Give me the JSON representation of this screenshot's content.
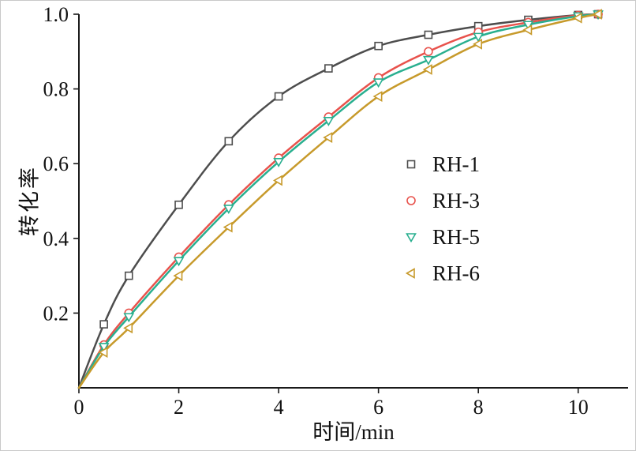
{
  "chart_data": {
    "type": "line",
    "title": "",
    "xlabel": "时间/min",
    "ylabel": "转化率",
    "xlim": [
      0,
      11.0
    ],
    "ylim": [
      0,
      1.0
    ],
    "xticks": [
      0,
      2,
      4,
      6,
      8,
      10
    ],
    "yticks": [
      0.2,
      0.4,
      0.6,
      0.8,
      1.0
    ],
    "grid": false,
    "legend_position": "middle-right",
    "x": [
      0,
      0.5,
      1,
      2,
      3,
      4,
      5,
      6,
      7,
      8,
      9,
      10,
      10.4
    ],
    "series": [
      {
        "name": "RH-1",
        "color": "#4d4d4d",
        "marker": "square",
        "values": [
          0,
          0.17,
          0.3,
          0.49,
          0.66,
          0.78,
          0.855,
          0.915,
          0.945,
          0.968,
          0.985,
          0.998,
          1.0
        ]
      },
      {
        "name": "RH-3",
        "color": "#e8524c",
        "marker": "circle",
        "values": [
          0,
          0.115,
          0.2,
          0.35,
          0.49,
          0.615,
          0.725,
          0.83,
          0.9,
          0.952,
          0.978,
          0.997,
          1.0
        ]
      },
      {
        "name": "RH-5",
        "color": "#29af8f",
        "marker": "triangle-down",
        "values": [
          0,
          0.11,
          0.19,
          0.34,
          0.48,
          0.605,
          0.715,
          0.818,
          0.878,
          0.94,
          0.972,
          0.995,
          1.0
        ]
      },
      {
        "name": "RH-6",
        "color": "#c79a2b",
        "marker": "triangle-left",
        "values": [
          0,
          0.095,
          0.16,
          0.3,
          0.43,
          0.555,
          0.67,
          0.78,
          0.852,
          0.92,
          0.958,
          0.99,
          1.0
        ]
      }
    ]
  }
}
